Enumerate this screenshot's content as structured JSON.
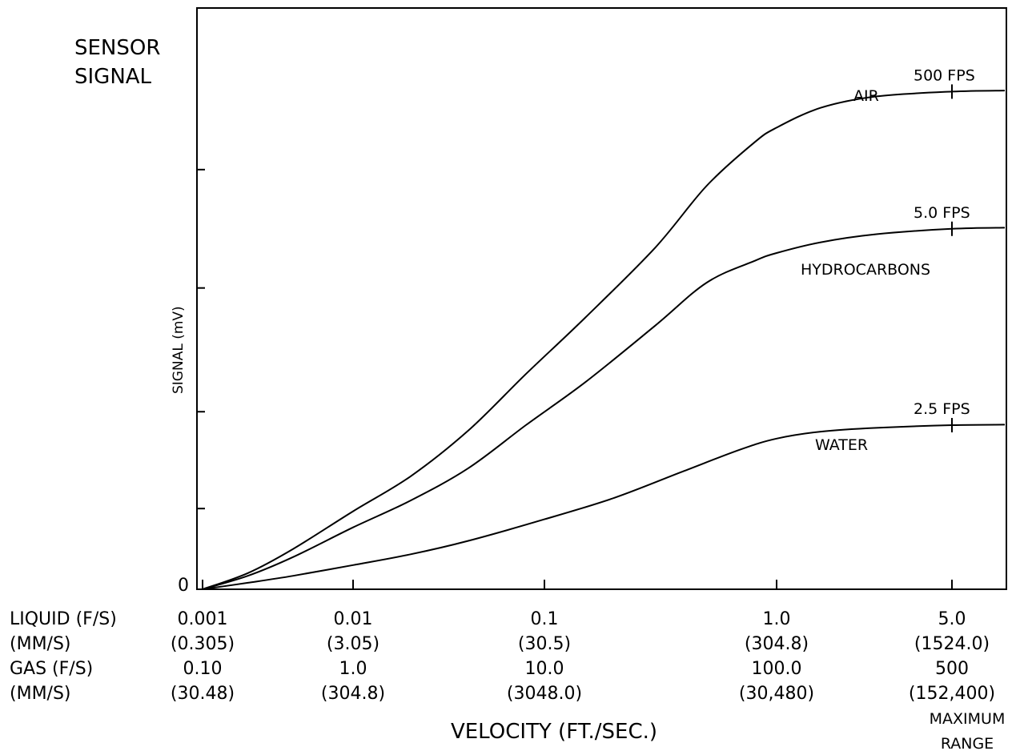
{
  "chart_data": {
    "type": "line",
    "title_lines": [
      "SENSOR",
      "SIGNAL"
    ],
    "ylabel": "SIGNAL (mV)",
    "xlabel": "VELOCITY (FT./SEC.)",
    "x_scale": "log",
    "y_zero_label": "0",
    "axis_rows": {
      "labels": [
        "LIQUID (F/S)",
        "(MM/S)",
        "GAS (F/S)",
        "(MM/S)"
      ],
      "columns": [
        {
          "x": 0.001,
          "values": [
            "0.001",
            "(0.305)",
            "0.10",
            "(30.48)"
          ]
        },
        {
          "x": 0.01,
          "values": [
            "0.01",
            "(3.05)",
            "1.0",
            "(304.8)"
          ]
        },
        {
          "x": 0.1,
          "values": [
            "0.1",
            "(30.5)",
            "10.0",
            "(3048.0)"
          ]
        },
        {
          "x": 1.0,
          "values": [
            "1.0",
            "(304.8)",
            "100.0",
            "(30,480)"
          ]
        },
        {
          "x": 5.0,
          "values": [
            "5.0",
            "(1524.0)",
            "500",
            "(152,400)"
          ]
        }
      ]
    },
    "x_extra_note": [
      "MAXIMUM",
      "RANGE"
    ],
    "series": [
      {
        "name": "AIR",
        "end_label": "500 FPS",
        "points": [
          [
            0.001,
            0.0
          ],
          [
            0.002,
            0.03
          ],
          [
            0.004,
            0.075
          ],
          [
            0.01,
            0.145
          ],
          [
            0.02,
            0.21
          ],
          [
            0.04,
            0.295
          ],
          [
            0.08,
            0.4
          ],
          [
            0.15,
            0.505
          ],
          [
            0.3,
            0.635
          ],
          [
            0.5,
            0.75
          ],
          [
            0.8,
            0.83
          ],
          [
            1.0,
            0.858
          ],
          [
            1.5,
            0.895
          ],
          [
            2.5,
            0.916
          ],
          [
            5.0,
            0.925
          ],
          [
            8.0,
            0.927
          ]
        ]
      },
      {
        "name": "HYDROCARBONS",
        "end_label": "5.0 FPS",
        "points": [
          [
            0.001,
            0.0
          ],
          [
            0.002,
            0.025
          ],
          [
            0.004,
            0.06
          ],
          [
            0.01,
            0.115
          ],
          [
            0.02,
            0.165
          ],
          [
            0.04,
            0.225
          ],
          [
            0.08,
            0.305
          ],
          [
            0.15,
            0.385
          ],
          [
            0.3,
            0.49
          ],
          [
            0.5,
            0.57
          ],
          [
            0.8,
            0.61
          ],
          [
            1.0,
            0.625
          ],
          [
            1.5,
            0.645
          ],
          [
            2.5,
            0.66
          ],
          [
            5.0,
            0.67
          ],
          [
            8.0,
            0.672
          ]
        ]
      },
      {
        "name": "WATER",
        "end_label": "2.5 FPS",
        "points": [
          [
            0.001,
            0.0
          ],
          [
            0.002,
            0.012
          ],
          [
            0.004,
            0.025
          ],
          [
            0.01,
            0.045
          ],
          [
            0.02,
            0.065
          ],
          [
            0.04,
            0.09
          ],
          [
            0.1,
            0.13
          ],
          [
            0.2,
            0.17
          ],
          [
            0.4,
            0.22
          ],
          [
            0.7,
            0.26
          ],
          [
            1.0,
            0.28
          ],
          [
            1.5,
            0.293
          ],
          [
            2.5,
            0.3
          ],
          [
            5.0,
            0.305
          ],
          [
            8.0,
            0.306
          ]
        ]
      }
    ],
    "ylim": [
      0,
      1
    ],
    "y_ticks": [
      0.15,
      0.33,
      0.56,
      0.78
    ],
    "grid": false,
    "legend": "none (curves labeled directly)"
  }
}
